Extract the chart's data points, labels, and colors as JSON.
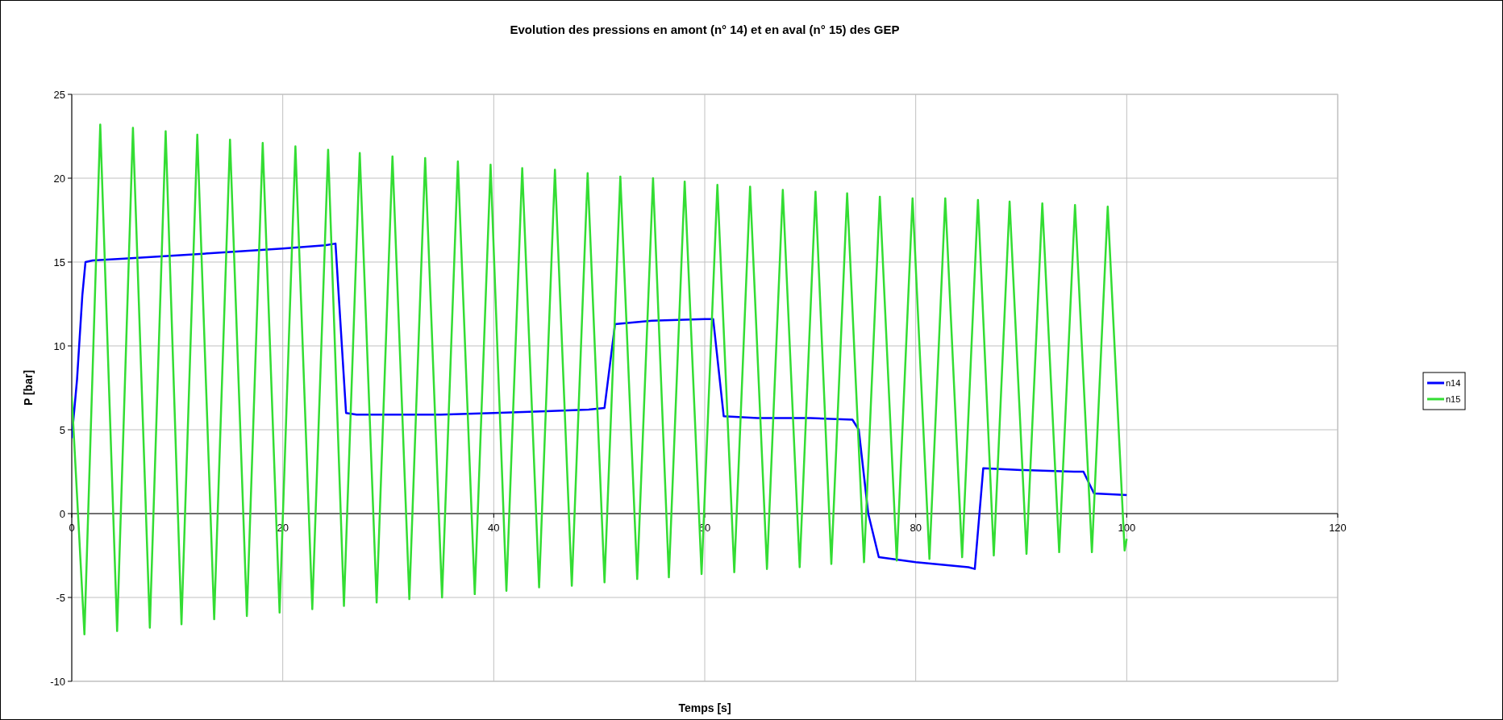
{
  "chart_data": {
    "type": "line",
    "title": "Evolution des pressions en amont (n° 14) et en aval (n° 15)  des GEP",
    "xlabel": "Temps [s]",
    "ylabel": "P [bar]",
    "xlim": [
      0,
      120
    ],
    "xticks": [
      0,
      20,
      40,
      60,
      80,
      100,
      120
    ],
    "ylim": [
      -10,
      25
    ],
    "yticks": [
      -10,
      -5,
      0,
      5,
      10,
      15,
      20,
      25
    ],
    "grid": true,
    "legend": "right",
    "marker": "none",
    "line_style": "solid",
    "series": [
      {
        "name": "n14",
        "color": "#0000ff",
        "x": [
          0,
          0.5,
          1,
          1.3,
          2,
          5,
          10,
          15,
          20,
          24,
          25,
          26,
          27,
          35,
          40,
          45,
          49,
          50.5,
          51.5,
          55,
          60,
          60.8,
          61.8,
          65,
          70,
          74,
          74.6,
          75.5,
          76.5,
          80,
          85,
          85.6,
          86.4,
          90,
          95,
          95.9,
          96.9,
          100
        ],
        "values": [
          4.5,
          8,
          13,
          15,
          15.1,
          15.2,
          15.4,
          15.6,
          15.8,
          16,
          16.1,
          6,
          5.9,
          5.9,
          6,
          6.1,
          6.2,
          6.3,
          11.3,
          11.5,
          11.6,
          11.6,
          5.8,
          5.7,
          5.7,
          5.6,
          5,
          0,
          -2.6,
          -2.9,
          -3.2,
          -3.3,
          2.7,
          2.6,
          2.5,
          2.5,
          1.2,
          1.1
        ]
      },
      {
        "name": "n15",
        "color": "#33dd33",
        "x": [
          0,
          1.2,
          2.7,
          4.3,
          5.8,
          7.4,
          8.9,
          10.4,
          11.9,
          13.5,
          15,
          16.6,
          18.1,
          19.7,
          21.2,
          22.8,
          24.3,
          25.8,
          27.3,
          28.9,
          30.4,
          32,
          33.5,
          35.1,
          36.6,
          38.2,
          39.7,
          41.2,
          42.7,
          44.3,
          45.8,
          47.4,
          48.9,
          50.5,
          52,
          53.6,
          55.1,
          56.6,
          58.1,
          59.7,
          61.2,
          62.8,
          64.3,
          65.9,
          67.4,
          69,
          70.5,
          72,
          73.5,
          75.1,
          76.6,
          78.2,
          79.7,
          81.3,
          82.8,
          84.4,
          85.9,
          87.4,
          88.9,
          90.5,
          92,
          93.6,
          95.1,
          96.7,
          98.2,
          99.8,
          100
        ],
        "values": [
          7,
          -7.2,
          23.2,
          -7,
          23,
          -6.8,
          22.8,
          -6.6,
          22.6,
          -6.3,
          22.3,
          -6.1,
          22.1,
          -5.9,
          21.9,
          -5.7,
          21.7,
          -5.5,
          21.5,
          -5.3,
          21.3,
          -5.1,
          21.2,
          -5,
          21,
          -4.8,
          20.8,
          -4.6,
          20.6,
          -4.4,
          20.5,
          -4.3,
          20.3,
          -4.1,
          20.1,
          -3.9,
          20,
          -3.8,
          19.8,
          -3.6,
          19.6,
          -3.5,
          19.5,
          -3.3,
          19.3,
          -3.2,
          19.2,
          -3,
          19.1,
          -2.9,
          18.9,
          -2.8,
          18.8,
          -2.7,
          18.8,
          -2.6,
          18.7,
          -2.5,
          18.6,
          -2.4,
          18.5,
          -2.3,
          18.4,
          -2.3,
          18.3,
          -2.2,
          -1.5
        ]
      }
    ]
  }
}
